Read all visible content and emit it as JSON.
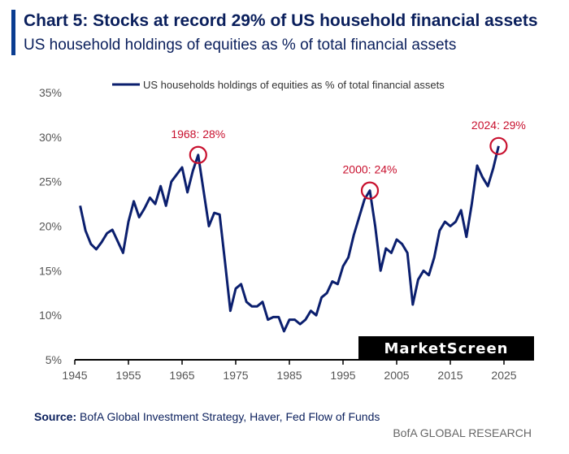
{
  "header": {
    "title": "Chart 5: Stocks at record 29% of US household financial assets",
    "subtitle": "US household holdings of equities as % of total financial assets"
  },
  "watermark": "MarketScreen",
  "footer": {
    "source_label": "Source:",
    "source_text": "BofA Global Investment Strategy, Haver, Fed Flow of Funds",
    "brand": "BofA GLOBAL RESEARCH"
  },
  "colors": {
    "line": "#0b1f6e",
    "annotation": "#c8102e",
    "accent": "#0b3d91"
  },
  "chart_data": {
    "type": "line",
    "title": "Chart 5: Stocks at record 29% of US household financial assets",
    "subtitle": "US household holdings of equities as % of total financial assets",
    "xlabel": "",
    "ylabel": "",
    "xlim": [
      1945,
      2027
    ],
    "ylim": [
      5,
      35
    ],
    "x_ticks": [
      1945,
      1955,
      1965,
      1975,
      1985,
      1995,
      2005,
      2015,
      2025
    ],
    "y_ticks": [
      5,
      10,
      15,
      20,
      25,
      30,
      35
    ],
    "y_tick_labels": [
      "5%",
      "10%",
      "15%",
      "20%",
      "25%",
      "30%",
      "35%"
    ],
    "grid": false,
    "legend_position": "top",
    "series": [
      {
        "name": "US households holdings of equities as % of total financial assets",
        "x": [
          1946,
          1947,
          1948,
          1949,
          1950,
          1951,
          1952,
          1953,
          1954,
          1955,
          1956,
          1957,
          1958,
          1959,
          1960,
          1961,
          1962,
          1963,
          1964,
          1965,
          1966,
          1967,
          1968,
          1969,
          1970,
          1971,
          1972,
          1973,
          1974,
          1975,
          1976,
          1977,
          1978,
          1979,
          1980,
          1981,
          1982,
          1983,
          1984,
          1985,
          1986,
          1987,
          1988,
          1989,
          1990,
          1991,
          1992,
          1993,
          1994,
          1995,
          1996,
          1997,
          1998,
          1999,
          2000,
          2001,
          2002,
          2003,
          2004,
          2005,
          2006,
          2007,
          2008,
          2009,
          2010,
          2011,
          2012,
          2013,
          2014,
          2015,
          2016,
          2017,
          2018,
          2019,
          2020,
          2021,
          2022,
          2023,
          2024
        ],
        "values": [
          22.3,
          19.5,
          18.0,
          17.4,
          18.2,
          19.2,
          19.6,
          18.3,
          17.0,
          20.5,
          22.8,
          21.0,
          22.0,
          23.2,
          22.5,
          24.5,
          22.3,
          25.0,
          25.8,
          26.6,
          23.8,
          26.2,
          28.0,
          24.0,
          20.0,
          21.5,
          21.3,
          16.0,
          10.5,
          13.0,
          13.5,
          11.5,
          11.0,
          11.0,
          11.5,
          9.5,
          9.8,
          9.8,
          8.2,
          9.5,
          9.5,
          9.0,
          9.5,
          10.5,
          10.0,
          12.0,
          12.5,
          13.8,
          13.5,
          15.5,
          16.5,
          19.0,
          21.0,
          23.0,
          24.0,
          20.0,
          15.0,
          17.5,
          17.0,
          18.5,
          18.0,
          17.0,
          11.2,
          14.0,
          15.0,
          14.5,
          16.5,
          19.5,
          20.5,
          20.0,
          20.5,
          21.8,
          18.8,
          22.5,
          26.8,
          25.5,
          24.5,
          26.5,
          29.0
        ]
      }
    ],
    "annotations": [
      {
        "label": "1968: 28%",
        "x": 1968,
        "y": 28
      },
      {
        "label": "2000: 24%",
        "x": 2000,
        "y": 24
      },
      {
        "label": "2024: 29%",
        "x": 2024,
        "y": 29
      }
    ]
  }
}
